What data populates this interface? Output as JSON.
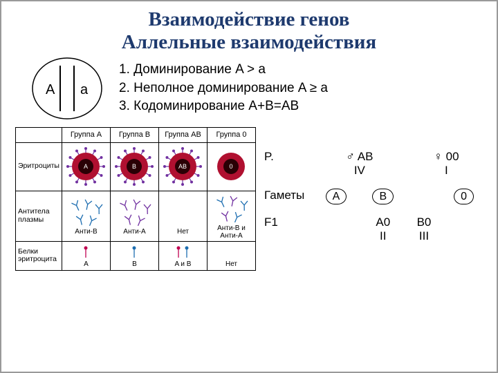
{
  "title_line1": "Взаимодействие генов",
  "title_line2": "Аллельные взаимодействия",
  "chromosome": {
    "left_label": "A",
    "right_label": "a"
  },
  "rules": {
    "r1": "1. Доминирование A > a",
    "r2": "2. Неполное доминирование A ≥ a",
    "r3": "3. Кодоминирование A+B=AB"
  },
  "blood_table": {
    "headers": [
      "Группа A",
      "Группа B",
      "Группа AB",
      "Группа 0"
    ],
    "row_labels": [
      "Эритроциты",
      "Антитела плазмы",
      "Белки эритроцита"
    ],
    "erythrocyte": {
      "colors": {
        "outer": "#b01030",
        "inner": "#2a0005",
        "antigen": "#7030a0"
      },
      "labels": [
        "A",
        "B",
        "AB",
        "0"
      ]
    },
    "antibodies": {
      "labels": [
        "Анти-B",
        "Анти-A",
        "Нет",
        "Анти-B и Анти-A"
      ],
      "color_a": "#7030a0",
      "color_b": "#1c6db0"
    },
    "proteins": {
      "labels": [
        "A",
        "B",
        "A и B",
        "Нет"
      ],
      "colors": {
        "a": "#c00050",
        "b": "#1c6db0"
      }
    }
  },
  "cross": {
    "p_label": "P.",
    "gametes_label": "Гаметы",
    "f1_label": "F1",
    "parent1": {
      "geno": "AB",
      "group": "IV"
    },
    "parent2": {
      "geno": "00",
      "group": "I"
    },
    "gametes": {
      "g1": "A",
      "g2": "B",
      "g3": "0"
    },
    "offspring1": {
      "geno": "A0",
      "group": "II"
    },
    "offspring2": {
      "geno": "B0",
      "group": "III"
    }
  },
  "colors": {
    "title": "#1e3a6e",
    "text": "#000000",
    "background": "#ffffff"
  }
}
